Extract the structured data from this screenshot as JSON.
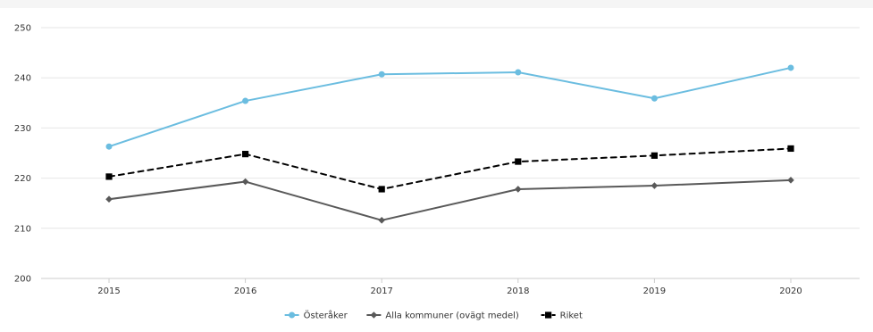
{
  "chart_data": {
    "type": "line",
    "title": "",
    "xlabel": "",
    "ylabel": "",
    "categories": [
      "2015",
      "2016",
      "2017",
      "2018",
      "2019",
      "2020"
    ],
    "ylim": [
      200,
      250
    ],
    "yticks": [
      200,
      210,
      220,
      230,
      240,
      250
    ],
    "grid": true,
    "legend_position": "bottom-center",
    "series": [
      {
        "name": "Österåker",
        "values": [
          226.3,
          235.4,
          240.7,
          241.1,
          235.9,
          242.0
        ],
        "color": "#6bbde0",
        "marker": "circle",
        "dash": "solid"
      },
      {
        "name": "Alla kommuner (ovägt medel)",
        "values": [
          215.8,
          219.3,
          211.6,
          217.8,
          218.5,
          219.6
        ],
        "color": "#595959",
        "marker": "diamond",
        "dash": "solid"
      },
      {
        "name": "Riket",
        "values": [
          220.3,
          224.8,
          217.8,
          223.3,
          224.5,
          225.9
        ],
        "color": "#000000",
        "marker": "square",
        "dash": "dashed"
      }
    ]
  },
  "colors": {
    "grid": "#e6e6e6",
    "axis": "#cccccc",
    "top_band": "#f5f5f5"
  }
}
